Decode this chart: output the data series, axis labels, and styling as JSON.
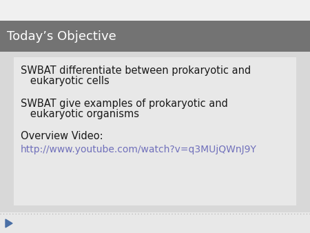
{
  "title": "Today’s Objective",
  "title_bg_color": "#737373",
  "title_text_color": "#ffffff",
  "slide_bg_color": "#ffffff",
  "content_bg_color": "#e8e8e8",
  "outer_bg_color": "#d8d8d8",
  "bullet1_line1": "SWBAT differentiate between prokaryotic and",
  "bullet1_line2": "   eukaryotic cells",
  "bullet2_line1": "SWBAT give examples of prokaryotic and",
  "bullet2_line2": "   eukaryotic organisms",
  "bullet3": "Overview Video:",
  "link": "http://www.youtube.com/watch?v=q3MUjQWnJ9Y",
  "link_color": "#7070bb",
  "text_color": "#1a1a1a",
  "body_text_size": 10.5,
  "title_text_size": 13
}
